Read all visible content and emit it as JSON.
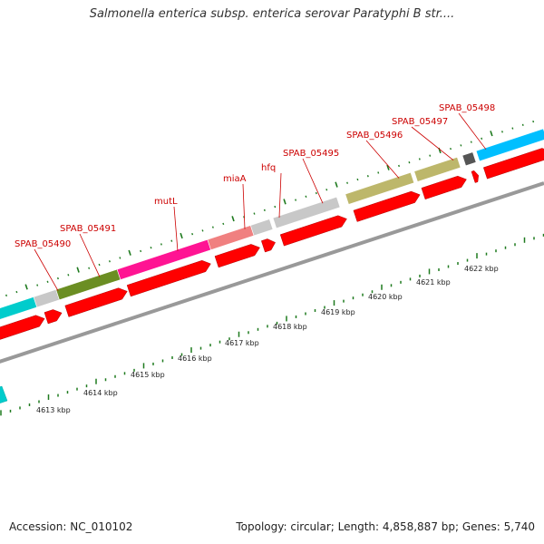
{
  "title": "Salmonella enterica subsp. enterica serovar Paratyphi B str....",
  "footer": {
    "accession": "Accession: NC_010102",
    "summary": "Topology: circular; Length: 4,858,887 bp; Genes: 5,740"
  },
  "colors": {
    "cds": "#ff0000",
    "grey": "#c0c0c0",
    "track_line": "#999999",
    "tick": "#1e7a1e",
    "label": "#cc0000"
  },
  "genes": [
    {
      "name": "",
      "color": "#00cccc",
      "kind": "segment"
    },
    {
      "name": "SPAB_05490",
      "color": "#c8c8c8",
      "kind": "segment"
    },
    {
      "name": "SPAB_05491",
      "color": "#6b8e23",
      "kind": "segment"
    },
    {
      "name": "mutL",
      "color": "#ff1493",
      "kind": "segment"
    },
    {
      "name": "miaA",
      "color": "#f08080",
      "kind": "segment"
    },
    {
      "name": "hfq",
      "color": "#c8c8c8",
      "kind": "segment"
    },
    {
      "name": "SPAB_05495",
      "color": "#c8c8c8",
      "kind": "segment"
    },
    {
      "name": "SPAB_05496",
      "color": "#bdb76b",
      "kind": "segment"
    },
    {
      "name": "SPAB_05497",
      "color": "#bdb76b",
      "kind": "segment"
    },
    {
      "name": "SPAB_05498",
      "color": "#555555",
      "kind": "segment"
    },
    {
      "name": "",
      "color": "#00bfff",
      "kind": "segment"
    }
  ],
  "scale_labels": [
    "4613 kbp",
    "4614 kbp",
    "4615 kbp",
    "4616 kbp",
    "4617 kbp",
    "4618 kbp",
    "4619 kbp",
    "4620 kbp",
    "4621 kbp",
    "4622 kbp"
  ]
}
